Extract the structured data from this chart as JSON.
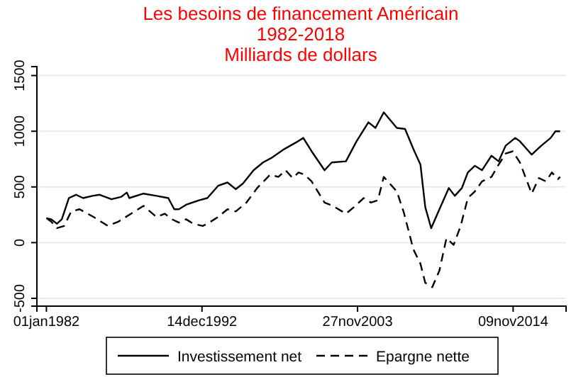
{
  "chart_data": {
    "type": "line",
    "title": "Les besoins de financement Américain",
    "subtitle": "1982-2018\nMilliards de dollars",
    "xlim": [
      "1981-05",
      "2018-08"
    ],
    "xticks": [
      {
        "value": "1982-01-01",
        "label": "01jan1982"
      },
      {
        "value": "1992-12-14",
        "label": "14dec1992"
      },
      {
        "value": "2003-11-27",
        "label": "27nov2003"
      },
      {
        "value": "2014-11-09",
        "label": "09nov2014"
      }
    ],
    "ylim": [
      -570,
      1580
    ],
    "yticks": [
      -500,
      0,
      500,
      1000,
      1500
    ],
    "grid": "y",
    "legend": "bottom",
    "series": [
      {
        "name": "Investissement net",
        "color": "#000000",
        "line_style": "solid",
        "x": [
          "1982-01",
          "1982-05",
          "1982-10",
          "1983-02",
          "1983-08",
          "1984-02",
          "1984-08",
          "1985-04",
          "1985-10",
          "1986-08",
          "1987-04",
          "1987-09",
          "1987-11",
          "1988-11",
          "1989-10",
          "1990-08",
          "1991-01",
          "1991-05",
          "1991-11",
          "1992-10",
          "1993-05",
          "1994-02",
          "1994-10",
          "1995-05",
          "1995-11",
          "1996-08",
          "1997-04",
          "1997-11",
          "1998-10",
          "1999-08",
          "2000-02",
          "2000-09",
          "2001-08",
          "2002-02",
          "2003-02",
          "2003-11",
          "2004-09",
          "2005-03",
          "2005-10",
          "2006-09",
          "2007-04",
          "2007-11",
          "2008-05",
          "2008-09",
          "2009-02",
          "2009-09",
          "2010-05",
          "2010-10",
          "2011-04",
          "2011-09",
          "2012-03",
          "2012-09",
          "2013-05",
          "2013-11",
          "2014-05",
          "2015-01",
          "2015-05",
          "2016-03",
          "2016-11",
          "2017-07",
          "2017-11",
          "2018-03"
        ],
        "values": [
          220,
          210,
          170,
          210,
          400,
          430,
          400,
          420,
          430,
          390,
          410,
          450,
          400,
          440,
          420,
          400,
          300,
          300,
          340,
          380,
          400,
          510,
          540,
          480,
          530,
          650,
          720,
          760,
          840,
          900,
          940,
          820,
          650,
          720,
          730,
          910,
          1080,
          1030,
          1170,
          1030,
          1020,
          840,
          700,
          320,
          130,
          300,
          490,
          420,
          490,
          630,
          690,
          650,
          780,
          730,
          870,
          940,
          910,
          790,
          870,
          940,
          1000,
          1000
        ]
      },
      {
        "name": "Epargne nette",
        "color": "#000000",
        "line_style": "dashed",
        "x": [
          "1982-01",
          "1982-05",
          "1982-10",
          "1983-04",
          "1983-10",
          "1984-05",
          "1985-05",
          "1986-05",
          "1987-02",
          "1988-02",
          "1988-11",
          "1989-10",
          "1990-05",
          "1990-11",
          "1991-05",
          "1991-11",
          "1992-05",
          "1993-01",
          "1993-05",
          "1994-02",
          "1994-10",
          "1995-05",
          "1996-02",
          "1996-11",
          "1997-10",
          "1998-05",
          "1998-11",
          "1999-05",
          "1999-10",
          "2000-03",
          "2000-09",
          "2001-08",
          "2002-03",
          "2003-02",
          "2003-09",
          "2004-05",
          "2004-11",
          "2005-05",
          "2005-10",
          "2006-09",
          "2007-03",
          "2007-11",
          "2008-05",
          "2008-09",
          "2009-03",
          "2009-09",
          "2010-03",
          "2010-09",
          "2011-03",
          "2011-09",
          "2012-03",
          "2012-09",
          "2013-05",
          "2013-11",
          "2014-05",
          "2014-11",
          "2015-05",
          "2016-03",
          "2016-09",
          "2017-03",
          "2017-08",
          "2018-01",
          "2018-03"
        ],
        "values": [
          220,
          190,
          130,
          150,
          280,
          300,
          230,
          150,
          190,
          270,
          330,
          230,
          260,
          210,
          180,
          210,
          170,
          150,
          170,
          230,
          300,
          280,
          360,
          490,
          610,
          590,
          650,
          580,
          630,
          610,
          550,
          360,
          330,
          260,
          320,
          400,
          360,
          380,
          590,
          460,
          270,
          -60,
          -190,
          -360,
          -400,
          -250,
          40,
          -20,
          150,
          400,
          460,
          550,
          590,
          700,
          800,
          820,
          720,
          440,
          580,
          550,
          630,
          570,
          590
        ]
      }
    ]
  }
}
